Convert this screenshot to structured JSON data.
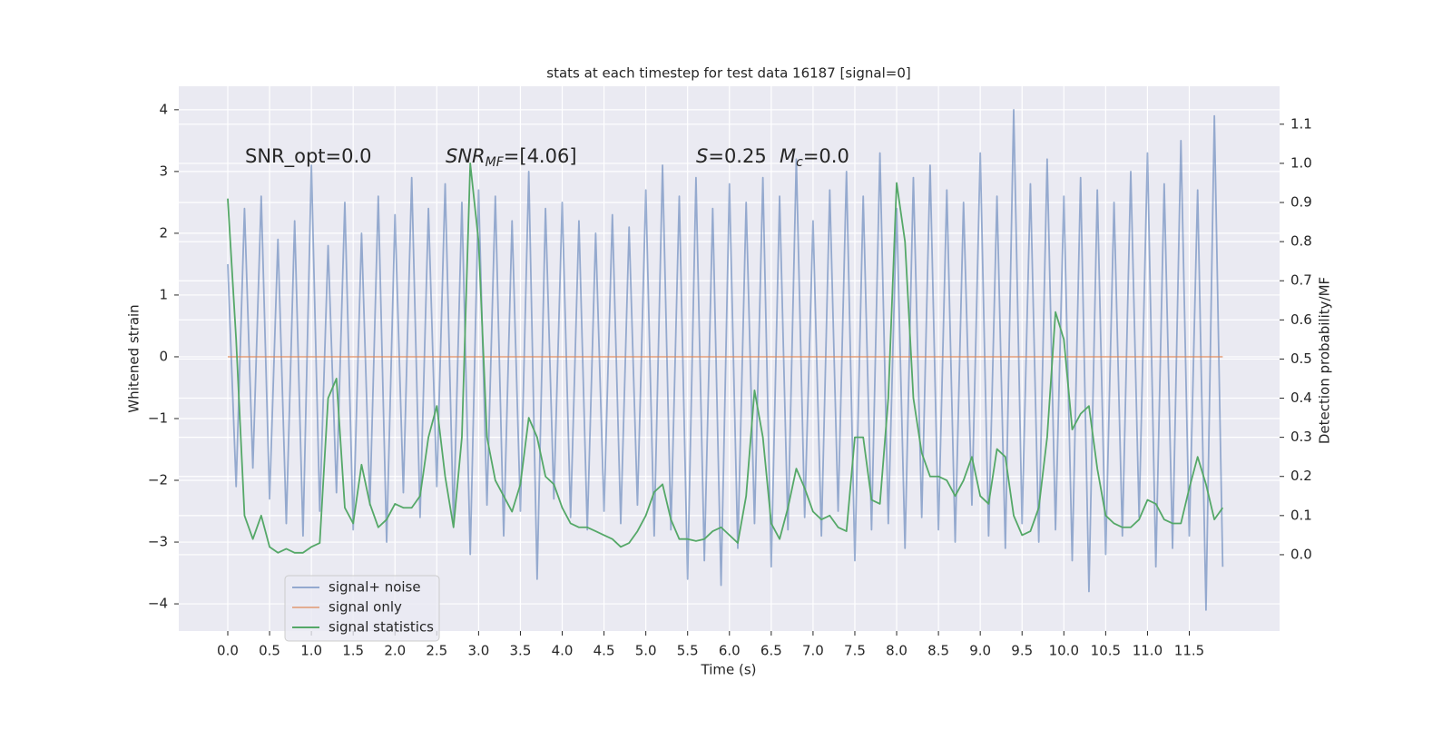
{
  "chart_data": {
    "type": "line",
    "title": "stats at each timestep for test data 16187 [signal=0]",
    "xlabel": "Time (s)",
    "ylabel": "Whitened strain",
    "y2label": "Detection probability/MF",
    "annotations": [
      {
        "text": "SNR_opt=0.0"
      },
      {
        "italic": "SNR",
        "sub": "MF",
        "text": "=[4.06]"
      },
      {
        "italic": "S",
        "text": "=0.25"
      },
      {
        "italic": "M",
        "sub": "c",
        "text": "=0.0"
      }
    ],
    "x": [
      0,
      0.1,
      0.2,
      0.3,
      0.4,
      0.5,
      0.6,
      0.7,
      0.8,
      0.9,
      1,
      1.1,
      1.2,
      1.3,
      1.4,
      1.5,
      1.6,
      1.7,
      1.8,
      1.9,
      2,
      2.1,
      2.2,
      2.3,
      2.4,
      2.5,
      2.6,
      2.7,
      2.8,
      2.9,
      3,
      3.1,
      3.2,
      3.3,
      3.4,
      3.5,
      3.6,
      3.7,
      3.8,
      3.9,
      4,
      4.1,
      4.2,
      4.3,
      4.4,
      4.5,
      4.6,
      4.7,
      4.8,
      4.9,
      5,
      5.1,
      5.2,
      5.3,
      5.4,
      5.5,
      5.6,
      5.7,
      5.8,
      5.9,
      6,
      6.1,
      6.2,
      6.3,
      6.4,
      6.5,
      6.6,
      6.7,
      6.8,
      6.9,
      7,
      7.1,
      7.2,
      7.3,
      7.4,
      7.5,
      7.6,
      7.7,
      7.8,
      7.9,
      8,
      8.1,
      8.2,
      8.3,
      8.4,
      8.5,
      8.6,
      8.7,
      8.8,
      8.9,
      9,
      9.1,
      9.2,
      9.3,
      9.4,
      9.5,
      9.6,
      9.7,
      9.8,
      9.9,
      10,
      10.1,
      10.2,
      10.3,
      10.4,
      10.5,
      10.6,
      10.7,
      10.8,
      10.9,
      11,
      11.1,
      11.2,
      11.3,
      11.4,
      11.5,
      11.6,
      11.7,
      11.8,
      11.9
    ],
    "series": [
      {
        "name": "signal+ noise",
        "color": "#4c72b0",
        "opacity": 0.55,
        "values": [
          1.5,
          -2.1,
          2.4,
          -1.8,
          2.6,
          -2.3,
          1.9,
          -2.7,
          2.2,
          -2.9,
          3.1,
          -2.5,
          1.8,
          -2.2,
          2.5,
          -2.8,
          2.0,
          -2.4,
          2.6,
          -3.0,
          2.3,
          -2.2,
          2.9,
          -2.6,
          2.4,
          -2.1,
          2.8,
          -2.7,
          2.5,
          -3.2,
          2.7,
          -2.4,
          2.6,
          -2.9,
          2.2,
          -2.5,
          3.0,
          -3.6,
          2.4,
          -2.3,
          2.5,
          -2.6,
          2.2,
          -2.8,
          2.0,
          -2.5,
          2.3,
          -2.7,
          2.1,
          -2.4,
          2.7,
          -2.9,
          3.1,
          -2.8,
          2.6,
          -3.6,
          2.9,
          -3.3,
          2.4,
          -3.7,
          2.8,
          -3.1,
          2.5,
          -2.7,
          2.9,
          -3.4,
          2.6,
          -2.8,
          3.2,
          -2.6,
          2.2,
          -2.9,
          2.7,
          -2.5,
          3.0,
          -3.3,
          2.6,
          -2.8,
          3.3,
          -2.7,
          2.4,
          -3.1,
          2.9,
          -2.6,
          3.1,
          -2.8,
          2.7,
          -3.0,
          2.5,
          -2.4,
          3.3,
          -2.9,
          2.6,
          -3.1,
          4.0,
          -2.7,
          2.8,
          -3.0,
          3.2,
          -2.8,
          2.6,
          -3.3,
          2.9,
          -3.8,
          2.7,
          -3.2,
          2.5,
          -2.9,
          3.0,
          -2.6,
          3.3,
          -3.4,
          2.8,
          -3.1,
          3.5,
          -2.9,
          2.7,
          -4.1,
          3.9,
          -3.4
        ]
      },
      {
        "name": "signal only",
        "color": "#dd8452",
        "opacity": 0.6,
        "values": [
          0,
          0,
          0,
          0,
          0,
          0,
          0,
          0,
          0,
          0,
          0,
          0,
          0,
          0,
          0,
          0,
          0,
          0,
          0,
          0,
          0,
          0,
          0,
          0,
          0,
          0,
          0,
          0,
          0,
          0,
          0,
          0,
          0,
          0,
          0,
          0,
          0,
          0,
          0,
          0,
          0,
          0,
          0,
          0,
          0,
          0,
          0,
          0,
          0,
          0,
          0,
          0,
          0,
          0,
          0,
          0,
          0,
          0,
          0,
          0,
          0,
          0,
          0,
          0,
          0,
          0,
          0,
          0,
          0,
          0,
          0,
          0,
          0,
          0,
          0,
          0,
          0,
          0,
          0,
          0,
          0,
          0,
          0,
          0,
          0,
          0,
          0,
          0,
          0,
          0,
          0,
          0,
          0,
          0,
          0,
          0,
          0,
          0,
          0,
          0,
          0,
          0,
          0,
          0,
          0,
          0,
          0,
          0,
          0,
          0,
          0,
          0,
          0,
          0,
          0,
          0,
          0,
          0,
          0,
          0
        ]
      },
      {
        "name": "signal statistics",
        "color": "#55a868",
        "opacity": 1,
        "axis": "y2",
        "values": [
          0.91,
          0.55,
          0.1,
          0.04,
          0.1,
          0.02,
          0.005,
          0.015,
          0.005,
          0.005,
          0.02,
          0.03,
          0.4,
          0.45,
          0.12,
          0.08,
          0.23,
          0.13,
          0.07,
          0.09,
          0.13,
          0.12,
          0.12,
          0.15,
          0.3,
          0.38,
          0.2,
          0.07,
          0.3,
          1.0,
          0.8,
          0.3,
          0.19,
          0.15,
          0.11,
          0.18,
          0.35,
          0.3,
          0.2,
          0.18,
          0.12,
          0.08,
          0.07,
          0.07,
          0.06,
          0.05,
          0.04,
          0.02,
          0.03,
          0.06,
          0.1,
          0.16,
          0.18,
          0.09,
          0.04,
          0.04,
          0.035,
          0.04,
          0.06,
          0.07,
          0.05,
          0.03,
          0.15,
          0.42,
          0.3,
          0.08,
          0.04,
          0.12,
          0.22,
          0.17,
          0.11,
          0.09,
          0.1,
          0.07,
          0.06,
          0.3,
          0.3,
          0.14,
          0.13,
          0.4,
          0.95,
          0.8,
          0.4,
          0.26,
          0.2,
          0.2,
          0.19,
          0.15,
          0.19,
          0.25,
          0.15,
          0.13,
          0.27,
          0.25,
          0.1,
          0.05,
          0.06,
          0.12,
          0.3,
          0.62,
          0.55,
          0.32,
          0.36,
          0.38,
          0.22,
          0.1,
          0.08,
          0.07,
          0.07,
          0.09,
          0.14,
          0.13,
          0.09,
          0.08,
          0.08,
          0.17,
          0.25,
          0.18,
          0.09,
          0.12
        ]
      }
    ],
    "xlim": [
      -0.586,
      12.58
    ],
    "ylim": [
      -4.44,
      4.38
    ],
    "y2lim": [
      -0.195,
      1.197
    ],
    "xticks": [
      {
        "value": 0,
        "label": "0.0"
      },
      {
        "value": 0.5,
        "label": "0.5"
      },
      {
        "value": 1,
        "label": "1.0"
      },
      {
        "value": 1.5,
        "label": "1.5"
      },
      {
        "value": 2,
        "label": "2.0"
      },
      {
        "value": 2.5,
        "label": "2.5"
      },
      {
        "value": 3,
        "label": "3.0"
      },
      {
        "value": 3.5,
        "label": "3.5"
      },
      {
        "value": 4,
        "label": "4.0"
      },
      {
        "value": 4.5,
        "label": "4.5"
      },
      {
        "value": 5,
        "label": "5.0"
      },
      {
        "value": 5.5,
        "label": "5.5"
      },
      {
        "value": 6,
        "label": "6.0"
      },
      {
        "value": 6.5,
        "label": "6.5"
      },
      {
        "value": 7,
        "label": "7.0"
      },
      {
        "value": 7.5,
        "label": "7.5"
      },
      {
        "value": 8,
        "label": "8.0"
      },
      {
        "value": 8.5,
        "label": "8.5"
      },
      {
        "value": 9,
        "label": "9.0"
      },
      {
        "value": 9.5,
        "label": "9.5"
      },
      {
        "value": 10,
        "label": "10.0"
      },
      {
        "value": 10.5,
        "label": "10.5"
      },
      {
        "value": 11,
        "label": "11.0"
      },
      {
        "value": 11.5,
        "label": "11.5"
      }
    ],
    "yticks": [
      {
        "value": -4,
        "label": "−4"
      },
      {
        "value": -3,
        "label": "−3"
      },
      {
        "value": -2,
        "label": "−2"
      },
      {
        "value": -1,
        "label": "−1"
      },
      0,
      1,
      2,
      3,
      4
    ],
    "y2ticks": [
      {
        "value": 0,
        "label": "0.0"
      },
      {
        "value": 0.1,
        "label": "0.1"
      },
      {
        "value": 0.2,
        "label": "0.2"
      },
      {
        "value": 0.3,
        "label": "0.3"
      },
      {
        "value": 0.4,
        "label": "0.4"
      },
      {
        "value": 0.5,
        "label": "0.5"
      },
      {
        "value": 0.6,
        "label": "0.6"
      },
      {
        "value": 0.7,
        "label": "0.7"
      },
      {
        "value": 0.8,
        "label": "0.8"
      },
      {
        "value": 0.9,
        "label": "0.9"
      },
      {
        "value": 1.0,
        "label": "1.0"
      },
      {
        "value": 1.1,
        "label": "1.1"
      }
    ],
    "grid": true,
    "legend": "lower left"
  }
}
